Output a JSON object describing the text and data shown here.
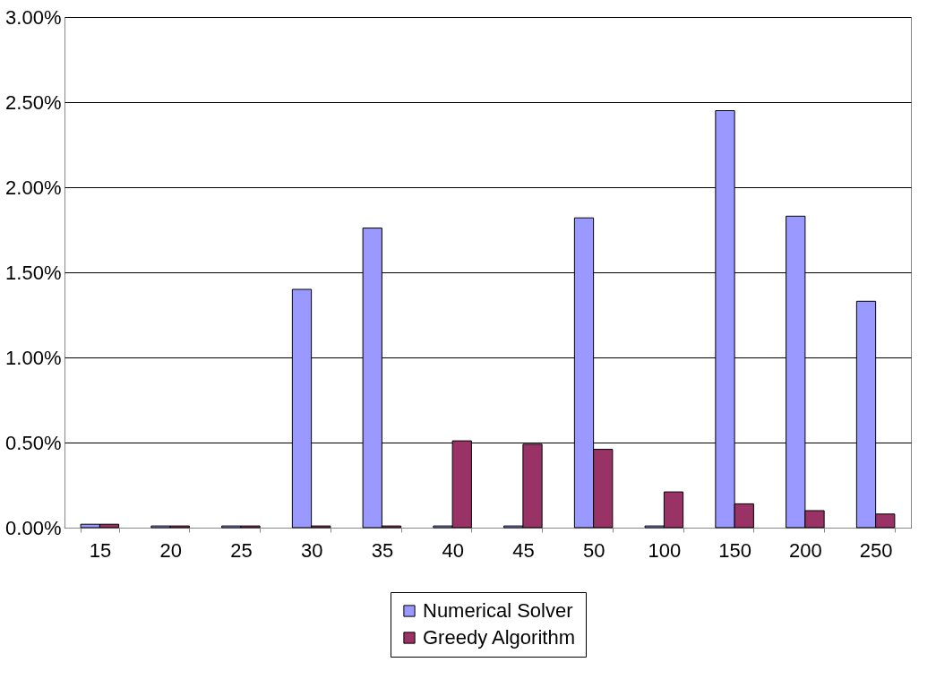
{
  "chart_data": {
    "type": "bar",
    "categories": [
      "15",
      "20",
      "25",
      "30",
      "35",
      "40",
      "45",
      "50",
      "100",
      "150",
      "200",
      "250"
    ],
    "series": [
      {
        "name": "Numerical Solver",
        "color": "#9999ff",
        "values": [
          0.02,
          0.01,
          0.01,
          1.4,
          1.76,
          0.01,
          0.01,
          1.82,
          0.01,
          2.45,
          1.83,
          1.33
        ]
      },
      {
        "name": "Greedy Algorithm",
        "color": "#993366",
        "values": [
          0.02,
          0.01,
          0.01,
          0.01,
          0.01,
          0.51,
          0.49,
          0.46,
          0.21,
          0.14,
          0.1,
          0.08
        ]
      }
    ],
    "ylim": [
      0,
      3
    ],
    "yticks": [
      {
        "value": 0,
        "label": "0.00%"
      },
      {
        "value": 0.5,
        "label": "0.50%"
      },
      {
        "value": 1,
        "label": "1.00%"
      },
      {
        "value": 1.5,
        "label": "1.50%"
      },
      {
        "value": 2,
        "label": "2.00%"
      },
      {
        "value": 2.5,
        "label": "2.50%"
      },
      {
        "value": 3,
        "label": "3.00%"
      }
    ],
    "grid": "y",
    "legend": "bottom"
  }
}
